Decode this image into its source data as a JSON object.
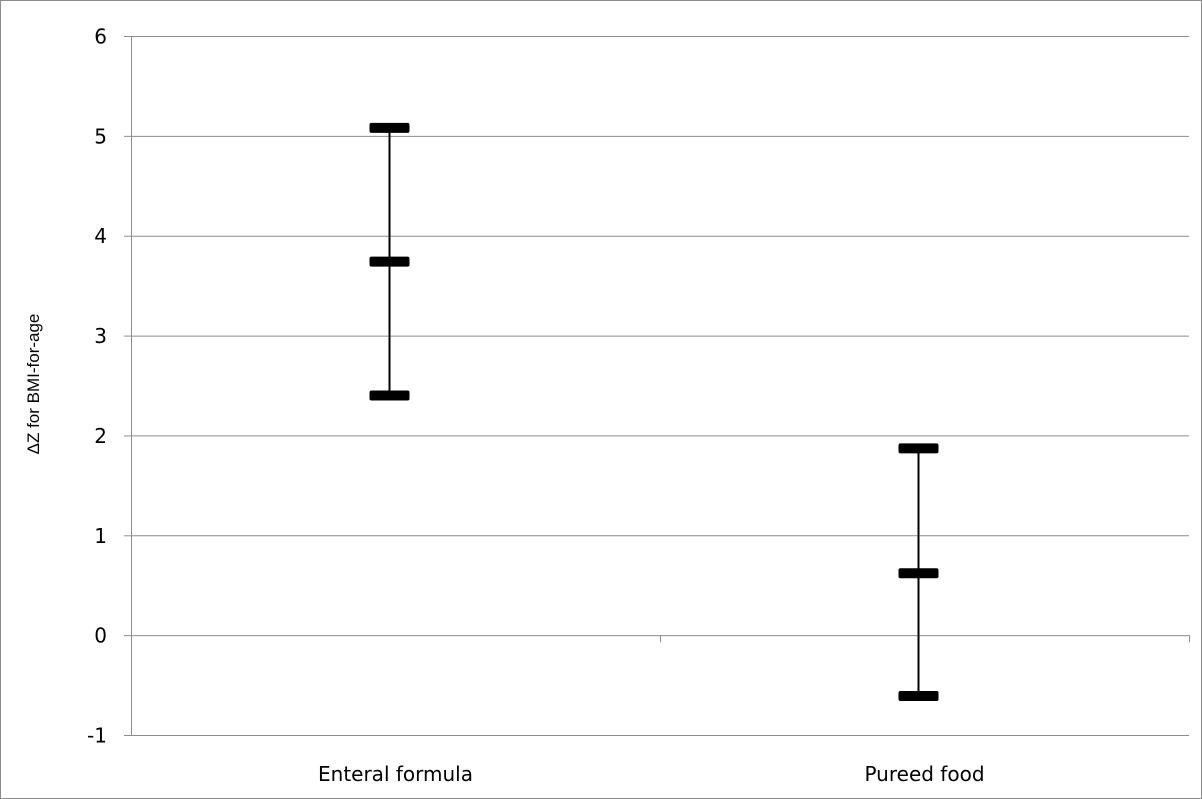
{
  "chart_data": {
    "type": "error-bar",
    "title": "",
    "xlabel": "",
    "ylabel": "ΔZ for BMI-for-age",
    "ylim": [
      -1,
      6
    ],
    "yticks": [
      -1,
      0,
      1,
      2,
      3,
      4,
      5,
      6
    ],
    "grid": true,
    "legend": "none",
    "categories": [
      "Enteral formula",
      "Pureed food"
    ],
    "series": [
      {
        "values": [
          {
            "category": "Enteral formula",
            "high": 5.08,
            "mid": 3.74,
            "low": 2.4
          },
          {
            "category": "Pureed food",
            "high": 1.87,
            "mid": 0.62,
            "low": -0.61
          }
        ]
      }
    ],
    "colors": {
      "marker": "#000000",
      "grid": "#8c8c8c",
      "axis": "#8c8c8c"
    }
  }
}
